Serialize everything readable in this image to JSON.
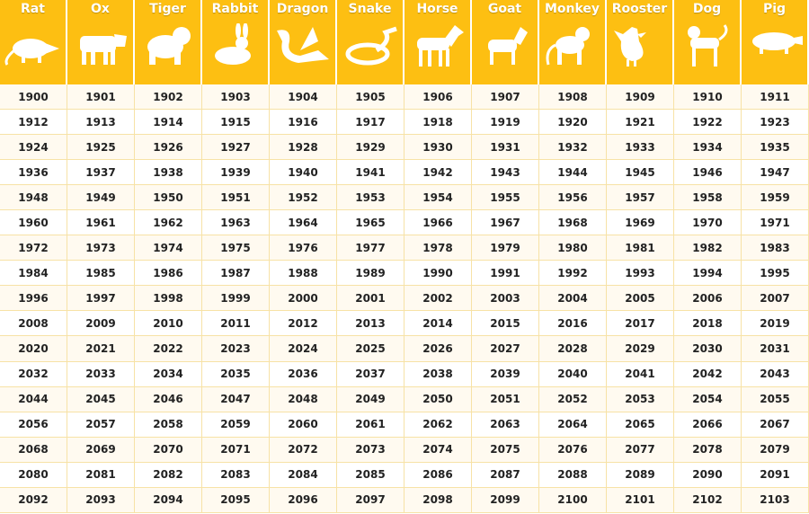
{
  "table": {
    "headers": [
      "Rat",
      "Ox",
      "Tiger",
      "Rabbit",
      "Dragon",
      "Snake",
      "Horse",
      "Goat",
      "Monkey",
      "Rooster",
      "Dog",
      "Pig"
    ],
    "rows": [
      [
        1900,
        1901,
        1902,
        1903,
        1904,
        1905,
        1906,
        1907,
        1908,
        1909,
        1910,
        1911
      ],
      [
        1912,
        1913,
        1914,
        1915,
        1916,
        1917,
        1918,
        1919,
        1920,
        1921,
        1922,
        1923
      ],
      [
        1924,
        1925,
        1926,
        1927,
        1928,
        1929,
        1930,
        1931,
        1932,
        1933,
        1934,
        1935
      ],
      [
        1936,
        1937,
        1938,
        1939,
        1940,
        1941,
        1942,
        1943,
        1944,
        1945,
        1946,
        1947
      ],
      [
        1948,
        1949,
        1950,
        1951,
        1952,
        1953,
        1954,
        1955,
        1956,
        1957,
        1958,
        1959
      ],
      [
        1960,
        1961,
        1962,
        1963,
        1964,
        1965,
        1966,
        1967,
        1968,
        1969,
        1970,
        1971
      ],
      [
        1972,
        1973,
        1974,
        1975,
        1976,
        1977,
        1978,
        1979,
        1980,
        1981,
        1982,
        1983
      ],
      [
        1984,
        1985,
        1986,
        1987,
        1988,
        1989,
        1990,
        1991,
        1992,
        1993,
        1994,
        1995
      ],
      [
        1996,
        1997,
        1998,
        1999,
        2000,
        2001,
        2002,
        2003,
        2004,
        2005,
        2006,
        2007
      ],
      [
        2008,
        2009,
        2010,
        2011,
        2012,
        2013,
        2014,
        2015,
        2016,
        2017,
        2018,
        2019
      ],
      [
        2020,
        2021,
        2022,
        2023,
        2024,
        2025,
        2026,
        2027,
        2028,
        2029,
        2030,
        2031
      ],
      [
        2032,
        2033,
        2034,
        2035,
        2036,
        2037,
        2038,
        2039,
        2040,
        2041,
        2042,
        2043
      ],
      [
        2044,
        2045,
        2046,
        2047,
        2048,
        2049,
        2050,
        2051,
        2052,
        2053,
        2054,
        2055
      ],
      [
        2056,
        2057,
        2058,
        2059,
        2060,
        2061,
        2062,
        2063,
        2064,
        2065,
        2066,
        2067
      ],
      [
        2068,
        2069,
        2070,
        2071,
        2072,
        2073,
        2074,
        2075,
        2076,
        2077,
        2078,
        2079
      ],
      [
        2080,
        2081,
        2082,
        2083,
        2084,
        2085,
        2086,
        2087,
        2088,
        2089,
        2090,
        2091
      ],
      [
        2092,
        2093,
        2094,
        2095,
        2096,
        2097,
        2098,
        2099,
        2100,
        2101,
        2102,
        2103
      ]
    ]
  }
}
